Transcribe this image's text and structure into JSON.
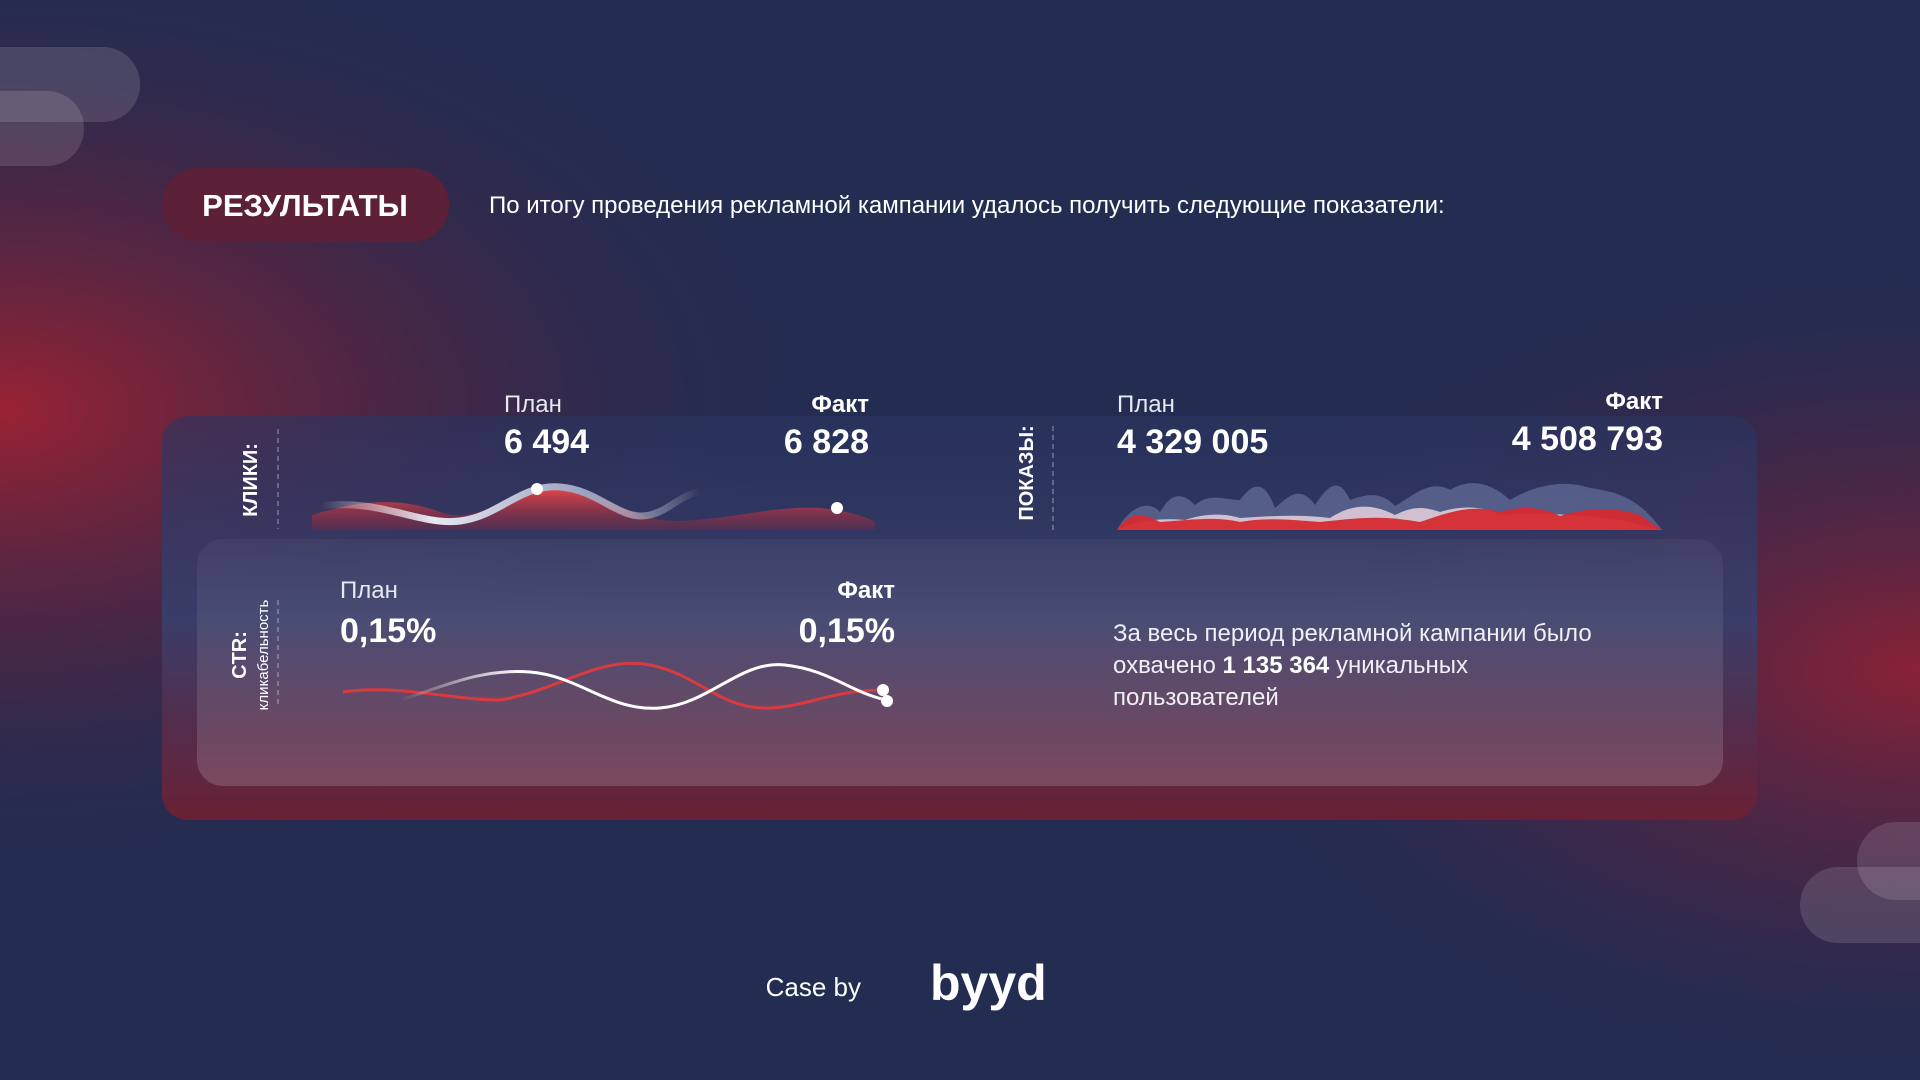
{
  "header": {
    "badge": "РЕЗУЛЬТАТЫ",
    "intro": "По итогу проведения рекламной кампании удалось получить следующие показатели:"
  },
  "metrics": [
    {
      "label": "КЛИКИ:",
      "plan_label": "План",
      "plan": "6 494",
      "fact_label": "Факт",
      "fact": "6 828"
    },
    {
      "label": "ПОКАЗЫ:",
      "plan_label": "План",
      "plan": "4 329 005",
      "fact_label": "Факт",
      "fact": "4 508 793"
    },
    {
      "label": "CTR:",
      "sublabel": "кликабельность",
      "plan_label": "План",
      "plan": "0,15%",
      "fact_label": "Факт",
      "fact": "0,15%"
    }
  ],
  "reach": {
    "text_before": "За весь период рекламной кампании было охвачено ",
    "highlight": "1 135 364",
    "text_after": " уникальных пользователей"
  },
  "footer": {
    "case_by": "Case by",
    "brand": "byyd"
  }
}
